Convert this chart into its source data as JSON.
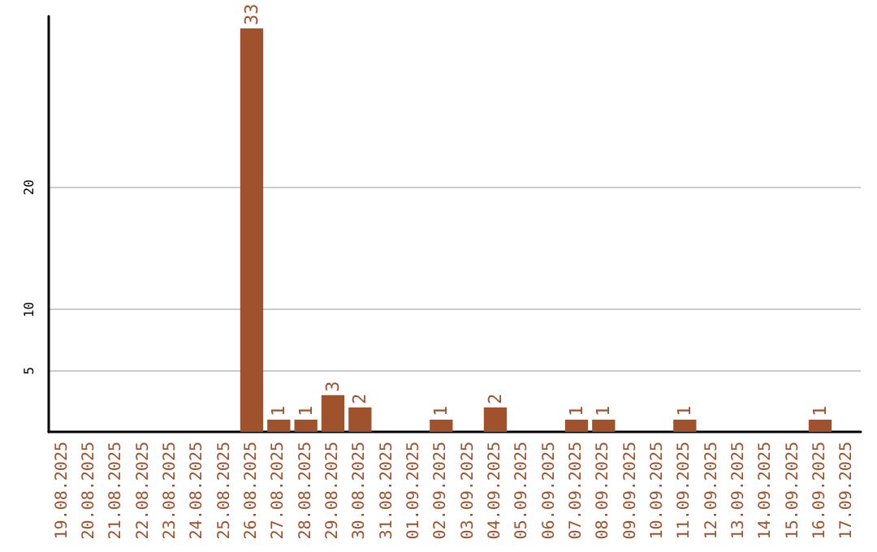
{
  "chart_data": {
    "type": "bar",
    "categories": [
      "19.08.2025",
      "20.08.2025",
      "21.08.2025",
      "22.08.2025",
      "23.08.2025",
      "24.08.2025",
      "25.08.2025",
      "26.08.2025",
      "27.08.2025",
      "28.08.2025",
      "29.08.2025",
      "30.08.2025",
      "31.08.2025",
      "01.09.2025",
      "02.09.2025",
      "03.09.2025",
      "04.09.2025",
      "05.09.2025",
      "06.09.2025",
      "07.09.2025",
      "08.09.2025",
      "09.09.2025",
      "10.09.2025",
      "11.09.2025",
      "12.09.2025",
      "13.09.2025",
      "14.09.2025",
      "15.09.2025",
      "16.09.2025",
      "17.09.2025"
    ],
    "values": [
      0,
      0,
      0,
      0,
      0,
      0,
      0,
      33,
      1,
      1,
      3,
      2,
      0,
      0,
      1,
      0,
      2,
      0,
      0,
      1,
      1,
      0,
      0,
      1,
      0,
      0,
      0,
      0,
      1,
      0
    ],
    "value_labels": [
      null,
      null,
      null,
      null,
      null,
      null,
      null,
      "33",
      "1",
      "1",
      "3",
      "2",
      null,
      null,
      "1",
      null,
      "2",
      null,
      null,
      "1",
      "1",
      null,
      null,
      "1",
      null,
      null,
      null,
      null,
      "1",
      null
    ],
    "color": "#a0522d",
    "ylim": [
      0,
      34
    ],
    "yticks": [
      5,
      10,
      20
    ],
    "grid": "y"
  }
}
